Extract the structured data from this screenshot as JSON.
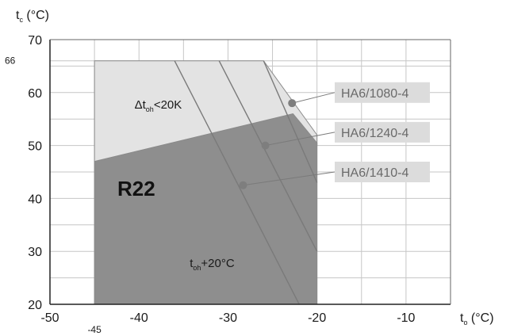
{
  "chart_data": {
    "type": "area",
    "title": "",
    "xlabel": {
      "main": "t",
      "sub": "o",
      "unit": " (°C)"
    },
    "ylabel": {
      "main": "t",
      "sub": "c",
      "unit": " (°C)"
    },
    "xlim": [
      -50,
      -5
    ],
    "ylim": [
      20,
      70
    ],
    "x_ticks": [
      "-50",
      "-40",
      "-30",
      "-20",
      "-10"
    ],
    "x_tick_values": [
      -50,
      -40,
      -30,
      -20,
      -10
    ],
    "y_ticks": [
      "20",
      "30",
      "40",
      "50",
      "60",
      "70"
    ],
    "y_tick_values": [
      20,
      30,
      40,
      50,
      60,
      70
    ],
    "extra_x_tick": {
      "label": "-45",
      "value": -45
    },
    "extra_y_tick": {
      "label": "66",
      "value": 66
    },
    "grid": true,
    "colors": {
      "light_region": "#e3e3e3",
      "dark_region": "#8e8e8e",
      "grid": "#c6c6c6",
      "lines": "#7a7a7a",
      "label_box": "#dcdcdc"
    },
    "regions": [
      {
        "name": "superheat-limited",
        "label": {
          "delta": "Δt",
          "sub": "oh",
          "rest": "<20K",
          "x": -40.5,
          "y": 57
        },
        "polygon": [
          [
            -45,
            47
          ],
          [
            -45,
            66
          ],
          [
            -26,
            66
          ],
          [
            -20,
            52
          ],
          [
            -20,
            50
          ]
        ]
      },
      {
        "name": "r22-envelope",
        "label": {
          "main": "t",
          "sub": "oh",
          "rest": "+20°C",
          "x": -34.3,
          "y": 27
        },
        "title": "R22",
        "polygon": [
          [
            -45,
            20
          ],
          [
            -45,
            47
          ],
          [
            -22.7,
            56
          ],
          [
            -20,
            50.5
          ],
          [
            -20,
            20
          ]
        ]
      }
    ],
    "series": [
      {
        "name": "HA6/1080-4",
        "marker": [
          -22.8,
          58
        ],
        "line": [
          [
            -26,
            66
          ],
          [
            -20,
            43
          ]
        ]
      },
      {
        "name": "HA6/1240-4",
        "marker": [
          -25.8,
          50
        ],
        "line": [
          [
            -31,
            66
          ],
          [
            -20,
            30
          ]
        ]
      },
      {
        "name": "HA6/1410-4",
        "marker": [
          -28.3,
          42.5
        ],
        "line": [
          [
            -36,
            66
          ],
          [
            -22,
            20
          ]
        ]
      }
    ]
  }
}
